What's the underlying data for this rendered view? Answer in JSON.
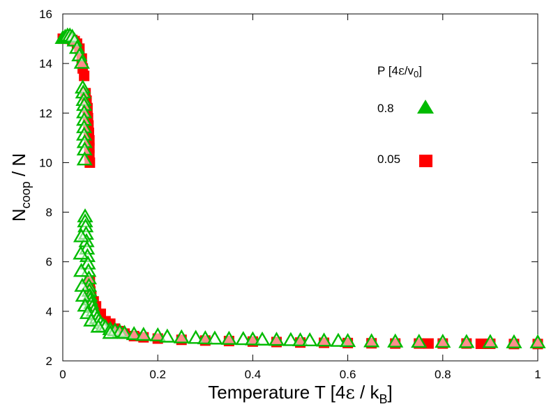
{
  "chart_data": {
    "type": "scatter",
    "title": "",
    "xlabel": "Temperature T [4ε / kB]",
    "xlabel_parts": {
      "main": "Temperature T [4",
      "eps": "ε",
      "mid": " / k",
      "sub": "B",
      "end": "]"
    },
    "ylabel": "Ncoop / N",
    "ylabel_parts": {
      "main": "N",
      "sub": "coop",
      "end": " / N"
    },
    "xlim": [
      0,
      1
    ],
    "ylim": [
      2,
      16
    ],
    "xticks": [
      0,
      0.2,
      0.4,
      0.6,
      0.8,
      1
    ],
    "xtick_labels": [
      "0",
      "0.2",
      "0.4",
      "0.6",
      "0.8",
      "1"
    ],
    "yticks": [
      2,
      4,
      6,
      8,
      10,
      12,
      14,
      16
    ],
    "ytick_labels": [
      "2",
      "4",
      "6",
      "8",
      "10",
      "12",
      "14",
      "16"
    ],
    "grid": false,
    "legend": {
      "title": "P [4ε/v0]",
      "title_parts": {
        "main": "P [4",
        "eps": "ε",
        "mid": "/v",
        "sub": "0",
        "end": "]"
      },
      "placement": "top-right"
    },
    "series": [
      {
        "name": "0.05",
        "marker": "square",
        "color": "#ff0000",
        "x": [
          0.0,
          0.01,
          0.015,
          0.02,
          0.025,
          0.03,
          0.035,
          0.04,
          0.042,
          0.045,
          0.048,
          0.05,
          0.052,
          0.053,
          0.054,
          0.055,
          0.056,
          0.056,
          0.056,
          0.057,
          0.057,
          0.058,
          0.06,
          0.065,
          0.07,
          0.08,
          0.09,
          0.1,
          0.11,
          0.12,
          0.13,
          0.15,
          0.17,
          0.2,
          0.25,
          0.3,
          0.35,
          0.4,
          0.45,
          0.5,
          0.55,
          0.6,
          0.65,
          0.7,
          0.75,
          0.77,
          0.8,
          0.85,
          0.88,
          0.9,
          0.95,
          1.0
        ],
        "values": [
          15.0,
          15.0,
          15.0,
          14.95,
          14.9,
          14.8,
          14.6,
          14.2,
          13.8,
          13.5,
          12.8,
          12.5,
          12.2,
          11.8,
          11.5,
          11.2,
          10.9,
          10.6,
          10.3,
          10.0,
          5.2,
          4.8,
          4.6,
          4.4,
          4.2,
          3.9,
          3.6,
          3.5,
          3.3,
          3.2,
          3.1,
          3.0,
          2.95,
          2.9,
          2.85,
          2.82,
          2.8,
          2.78,
          2.76,
          2.74,
          2.73,
          2.72,
          2.71,
          2.7,
          2.7,
          2.7,
          2.7,
          2.7,
          2.69,
          2.69,
          2.68,
          2.68
        ]
      },
      {
        "name": "0.8",
        "marker": "triangle",
        "color": "#00bb00",
        "x": [
          0.0,
          0.005,
          0.01,
          0.015,
          0.02,
          0.025,
          0.03,
          0.035,
          0.04,
          0.042,
          0.043,
          0.044,
          0.045,
          0.045,
          0.045,
          0.045,
          0.045,
          0.046,
          0.046,
          0.046,
          0.047,
          0.047,
          0.048,
          0.049,
          0.05,
          0.051,
          0.052,
          0.053,
          0.054,
          0.055,
          0.055,
          0.056,
          0.057,
          0.058,
          0.06,
          0.062,
          0.065,
          0.068,
          0.072,
          0.076,
          0.08,
          0.085,
          0.09,
          0.1,
          0.11,
          0.12,
          0.13,
          0.15,
          0.17,
          0.2,
          0.22,
          0.25,
          0.28,
          0.3,
          0.32,
          0.35,
          0.38,
          0.4,
          0.42,
          0.45,
          0.48,
          0.5,
          0.52,
          0.55,
          0.58,
          0.6,
          0.65,
          0.7,
          0.75,
          0.8,
          0.85,
          0.9,
          0.95,
          1.0,
          0.039,
          0.038,
          0.039,
          0.041,
          0.043,
          0.047,
          0.052,
          0.06,
          0.075,
          0.1
        ],
        "values": [
          15.0,
          15.05,
          15.1,
          15.1,
          15.05,
          14.9,
          14.6,
          14.3,
          14.0,
          13.0,
          12.8,
          12.5,
          12.3,
          12.0,
          11.7,
          11.4,
          11.1,
          10.8,
          10.5,
          10.1,
          7.8,
          7.6,
          7.4,
          7.1,
          6.8,
          6.5,
          6.2,
          5.9,
          5.6,
          5.3,
          5.0,
          4.8,
          4.6,
          4.45,
          4.3,
          4.15,
          4.0,
          3.85,
          3.7,
          3.6,
          3.5,
          3.4,
          3.35,
          3.25,
          3.2,
          3.15,
          3.1,
          3.05,
          3.02,
          3.0,
          2.95,
          2.92,
          2.9,
          2.88,
          2.87,
          2.86,
          2.85,
          2.84,
          2.83,
          2.82,
          2.81,
          2.8,
          2.8,
          2.79,
          2.78,
          2.77,
          2.76,
          2.75,
          2.74,
          2.74,
          2.73,
          2.73,
          2.72,
          2.72,
          7.0,
          6.3,
          5.6,
          5.0,
          4.6,
          4.2,
          3.9,
          3.6,
          3.35,
          3.1
        ]
      }
    ]
  }
}
